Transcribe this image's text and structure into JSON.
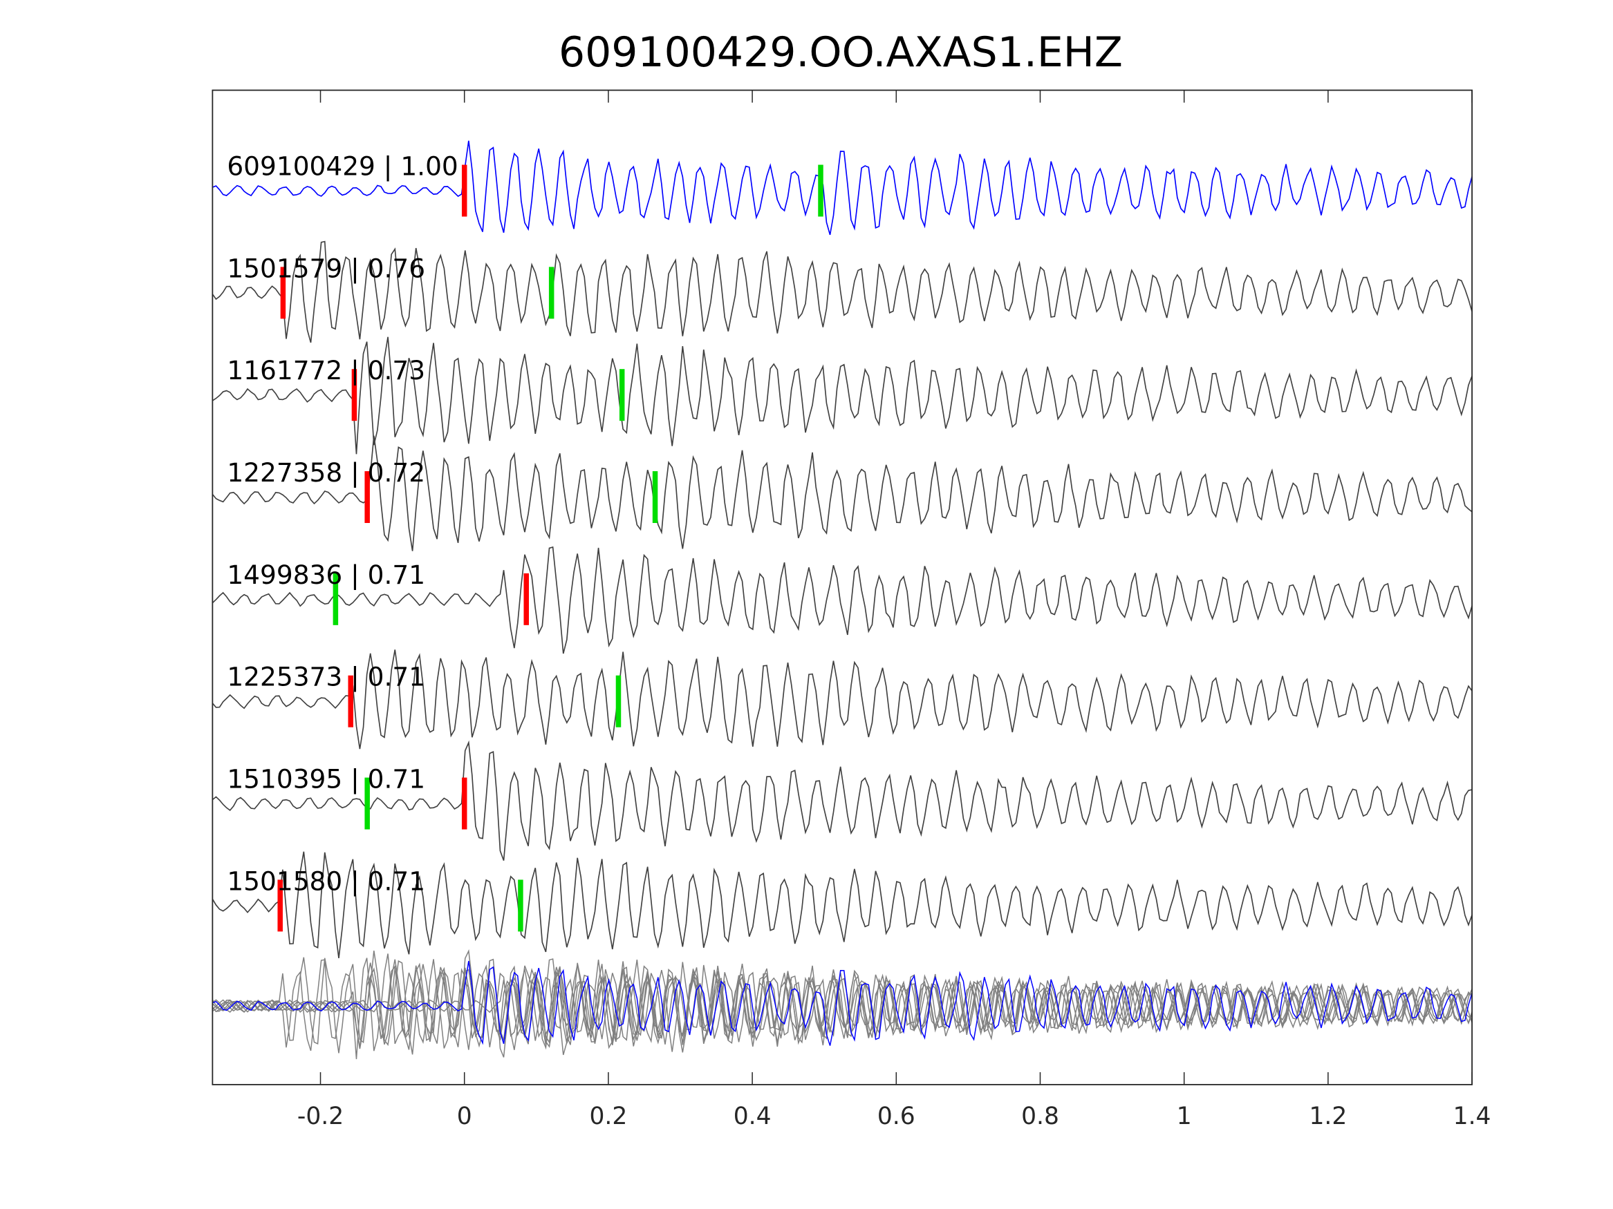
{
  "chart_data": {
    "type": "line",
    "title": "609100429.OO.AXAS1.EHZ",
    "xlabel": "",
    "ylabel": "",
    "xlim": [
      -0.35,
      1.4
    ],
    "xticks": [
      -0.2,
      0,
      0.2,
      0.4,
      0.6,
      0.8,
      1,
      1.2,
      1.4
    ],
    "xtick_labels": [
      "-0.2",
      "0",
      "0.2",
      "0.4",
      "0.6",
      "0.8",
      "1",
      "1.2",
      "1.4"
    ],
    "grid": false,
    "colors": {
      "template": "#0000ff",
      "neighbor": "#404040",
      "stack": "#808080",
      "p_pick": "#ff0000",
      "s_pick": "#00dd00"
    },
    "series": [
      {
        "label": "609100429 | 1.00",
        "id": "609100429",
        "cc": 1.0,
        "p_pick": 0.0,
        "s_pick": 0.495,
        "template": true
      },
      {
        "label": "1501579 | 0.76",
        "id": "1501579",
        "cc": 0.76,
        "p_pick": -0.252,
        "s_pick": 0.121
      },
      {
        "label": "1161772 | 0.73",
        "id": "1161772",
        "cc": 0.73,
        "p_pick": -0.153,
        "s_pick": 0.219
      },
      {
        "label": "1227358 | 0.72",
        "id": "1227358",
        "cc": 0.72,
        "p_pick": -0.135,
        "s_pick": 0.265
      },
      {
        "label": "1499836 | 0.71",
        "id": "1499836",
        "cc": 0.71,
        "p_pick": 0.086,
        "s_pick": -0.179
      },
      {
        "label": "1225373 | 0.71",
        "id": "1225373",
        "cc": 0.71,
        "p_pick": -0.158,
        "s_pick": 0.214
      },
      {
        "label": "1510395 | 0.71",
        "id": "1510395",
        "cc": 0.71,
        "p_pick": 0.0,
        "s_pick": -0.135
      },
      {
        "label": "1501580 | 0.71",
        "id": "1501580",
        "cc": 0.71,
        "p_pick": -0.256,
        "s_pick": 0.078
      }
    ]
  }
}
